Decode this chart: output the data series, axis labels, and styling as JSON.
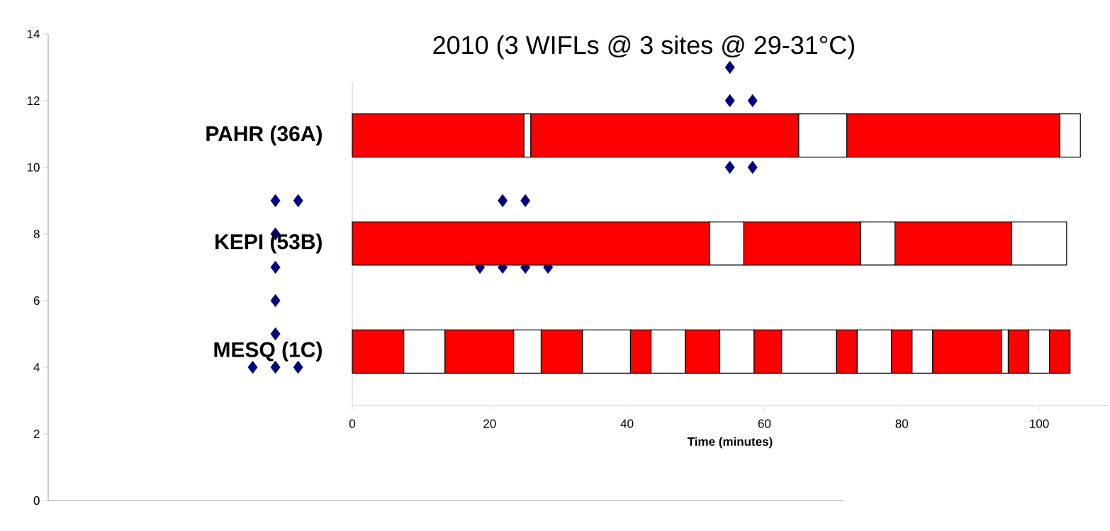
{
  "chart_data": [
    {
      "type": "scatter",
      "categories": [
        null,
        null,
        null,
        null,
        null,
        null,
        null,
        null,
        null,
        null,
        null,
        null,
        null,
        null,
        null,
        null,
        null,
        null,
        null,
        null,
        null,
        null,
        null,
        null,
        null,
        null,
        null,
        null,
        null,
        null,
        null,
        null,
        null,
        null,
        null,
        null
      ],
      "ylim": [
        0,
        14
      ],
      "yticks": [
        0,
        2,
        4,
        6,
        8,
        10,
        12,
        14
      ],
      "marker": "diamond",
      "series": [
        {
          "color": "#000080",
          "values": [
            null,
            null,
            null,
            null,
            null,
            null,
            null,
            null,
            null,
            4,
            4,
            4,
            null,
            null,
            null,
            null,
            null,
            null,
            null,
            7,
            7,
            7,
            7,
            null,
            null,
            null,
            null,
            null,
            null,
            null,
            10,
            10,
            null,
            null,
            null,
            null
          ]
        },
        {
          "color": "#000080",
          "values": [
            null,
            null,
            null,
            null,
            null,
            null,
            null,
            null,
            null,
            null,
            5,
            9,
            null,
            null,
            null,
            null,
            null,
            null,
            null,
            null,
            9,
            9,
            null,
            null,
            null,
            null,
            null,
            null,
            null,
            null,
            null,
            12,
            null,
            null,
            null,
            null
          ]
        },
        {
          "color": "#000080",
          "values": [
            null,
            null,
            null,
            null,
            null,
            null,
            null,
            null,
            null,
            null,
            6,
            null,
            null,
            null,
            null,
            null,
            null,
            null,
            null,
            null,
            null,
            null,
            null,
            null,
            null,
            null,
            null,
            null,
            null,
            null,
            12,
            null,
            null,
            null,
            null,
            null
          ]
        },
        {
          "color": "#000080",
          "values": [
            null,
            null,
            null,
            null,
            null,
            null,
            null,
            null,
            null,
            null,
            7,
            null,
            null,
            null,
            null,
            null,
            null,
            null,
            null,
            null,
            null,
            null,
            null,
            null,
            null,
            null,
            null,
            null,
            null,
            null,
            13,
            null,
            null,
            null,
            null,
            null
          ]
        },
        {
          "color": "#000080",
          "values": [
            null,
            null,
            null,
            null,
            null,
            null,
            null,
            null,
            null,
            null,
            8,
            null,
            null,
            null,
            null,
            null,
            null,
            null,
            null,
            null,
            null,
            null,
            null,
            null,
            null,
            null,
            null,
            null,
            null,
            null,
            null,
            null,
            null,
            null,
            null,
            null
          ]
        },
        {
          "color": "#000080",
          "values": [
            null,
            null,
            null,
            null,
            null,
            null,
            null,
            null,
            null,
            null,
            9,
            null,
            null,
            null,
            null,
            null,
            null,
            null,
            null,
            null,
            null,
            null,
            null,
            null,
            null,
            null,
            null,
            null,
            null,
            null,
            null,
            null,
            null,
            null,
            null,
            null
          ]
        }
      ]
    },
    {
      "type": "bar",
      "orientation": "horizontal",
      "stacked": true,
      "title": "2010 (3 WIFLs @ 3 sites @ 29-31°C)",
      "xlabel": "Time (minutes)",
      "categories": [
        "PAHR (36A)",
        "KEPI (53B)",
        "MESQ (1C)"
      ],
      "xlim": [
        0,
        110
      ],
      "xticks": [
        0,
        20,
        40,
        60,
        80,
        100
      ],
      "series": [
        {
          "color": "#ff0000",
          "values": [
            25,
            52,
            7.5
          ]
        },
        {
          "color": "#ffffff",
          "values": [
            1,
            5,
            6
          ]
        },
        {
          "color": "#ff0000",
          "values": [
            39,
            17,
            10
          ]
        },
        {
          "color": "#ffffff",
          "values": [
            7,
            5,
            4
          ]
        },
        {
          "color": "#ff0000",
          "values": [
            31,
            17,
            6
          ]
        },
        {
          "color": "#ffffff",
          "values": [
            3,
            8,
            7
          ]
        },
        {
          "color": "#ff0000",
          "values": [
            null,
            null,
            3
          ]
        },
        {
          "color": "#ffffff",
          "values": [
            null,
            null,
            5
          ]
        },
        {
          "color": "#ff0000",
          "values": [
            null,
            null,
            5
          ]
        },
        {
          "color": "#ffffff",
          "values": [
            null,
            null,
            5
          ]
        },
        {
          "color": "#ff0000",
          "values": [
            null,
            null,
            4
          ]
        },
        {
          "color": "#ffffff",
          "values": [
            null,
            null,
            8
          ]
        },
        {
          "color": "#ff0000",
          "values": [
            null,
            null,
            3
          ]
        },
        {
          "color": "#ffffff",
          "values": [
            null,
            null,
            5
          ]
        },
        {
          "color": "#ff0000",
          "values": [
            null,
            null,
            3
          ]
        },
        {
          "color": "#ffffff",
          "values": [
            null,
            null,
            3
          ]
        },
        {
          "color": "#ff0000",
          "values": [
            null,
            null,
            10
          ]
        },
        {
          "color": "#ffffff",
          "values": [
            null,
            null,
            1
          ]
        },
        {
          "color": "#ff0000",
          "values": [
            null,
            null,
            3
          ]
        },
        {
          "color": "#ffffff",
          "values": [
            null,
            null,
            3
          ]
        },
        {
          "color": "#ff0000",
          "values": [
            null,
            null,
            3
          ]
        }
      ]
    }
  ]
}
